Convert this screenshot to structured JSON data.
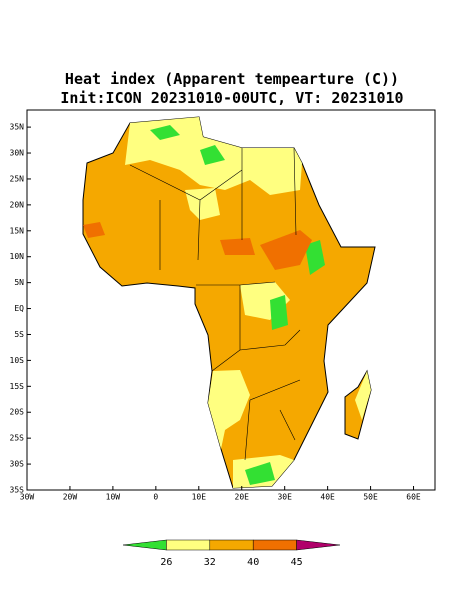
{
  "chart_data": {
    "type": "map",
    "title": "Heat index (Apparent tempearture (C))",
    "subtitle": "Init:ICON 20231010-00UTC, VT: 20231010",
    "xlim": [
      -30,
      65
    ],
    "ylim": [
      -35,
      38.3
    ],
    "xticks": [
      {
        "value": -30,
        "label": "30W"
      },
      {
        "value": -20,
        "label": "20W"
      },
      {
        "value": -10,
        "label": "10W"
      },
      0,
      {
        "value": 10,
        "label": "10E"
      },
      {
        "value": 20,
        "label": "20E"
      },
      {
        "value": 30,
        "label": "30E"
      },
      {
        "value": 40,
        "label": "40E"
      },
      {
        "value": 50,
        "label": "50E"
      },
      {
        "value": 60,
        "label": "60E"
      }
    ],
    "yticks": [
      {
        "value": 35,
        "label": "35N"
      },
      {
        "value": 30,
        "label": "30N"
      },
      {
        "value": 25,
        "label": "25N"
      },
      {
        "value": 20,
        "label": "20N"
      },
      {
        "value": 15,
        "label": "15N"
      },
      {
        "value": 10,
        "label": "10N"
      },
      {
        "value": 5,
        "label": "5N"
      },
      {
        "value": 0,
        "label": "EQ"
      },
      {
        "value": -5,
        "label": "5S"
      },
      {
        "value": -10,
        "label": "10S"
      },
      {
        "value": -15,
        "label": "15S"
      },
      {
        "value": -20,
        "label": "20S"
      },
      {
        "value": -25,
        "label": "25S"
      },
      {
        "value": -30,
        "label": "30S"
      },
      {
        "value": -35,
        "label": "35S"
      }
    ],
    "colorbar": {
      "levels": [
        26,
        32,
        40,
        45
      ],
      "colors": [
        "#33e033",
        "#ffff80",
        "#f5a800",
        "#f07000",
        "#b0006a"
      ]
    }
  }
}
